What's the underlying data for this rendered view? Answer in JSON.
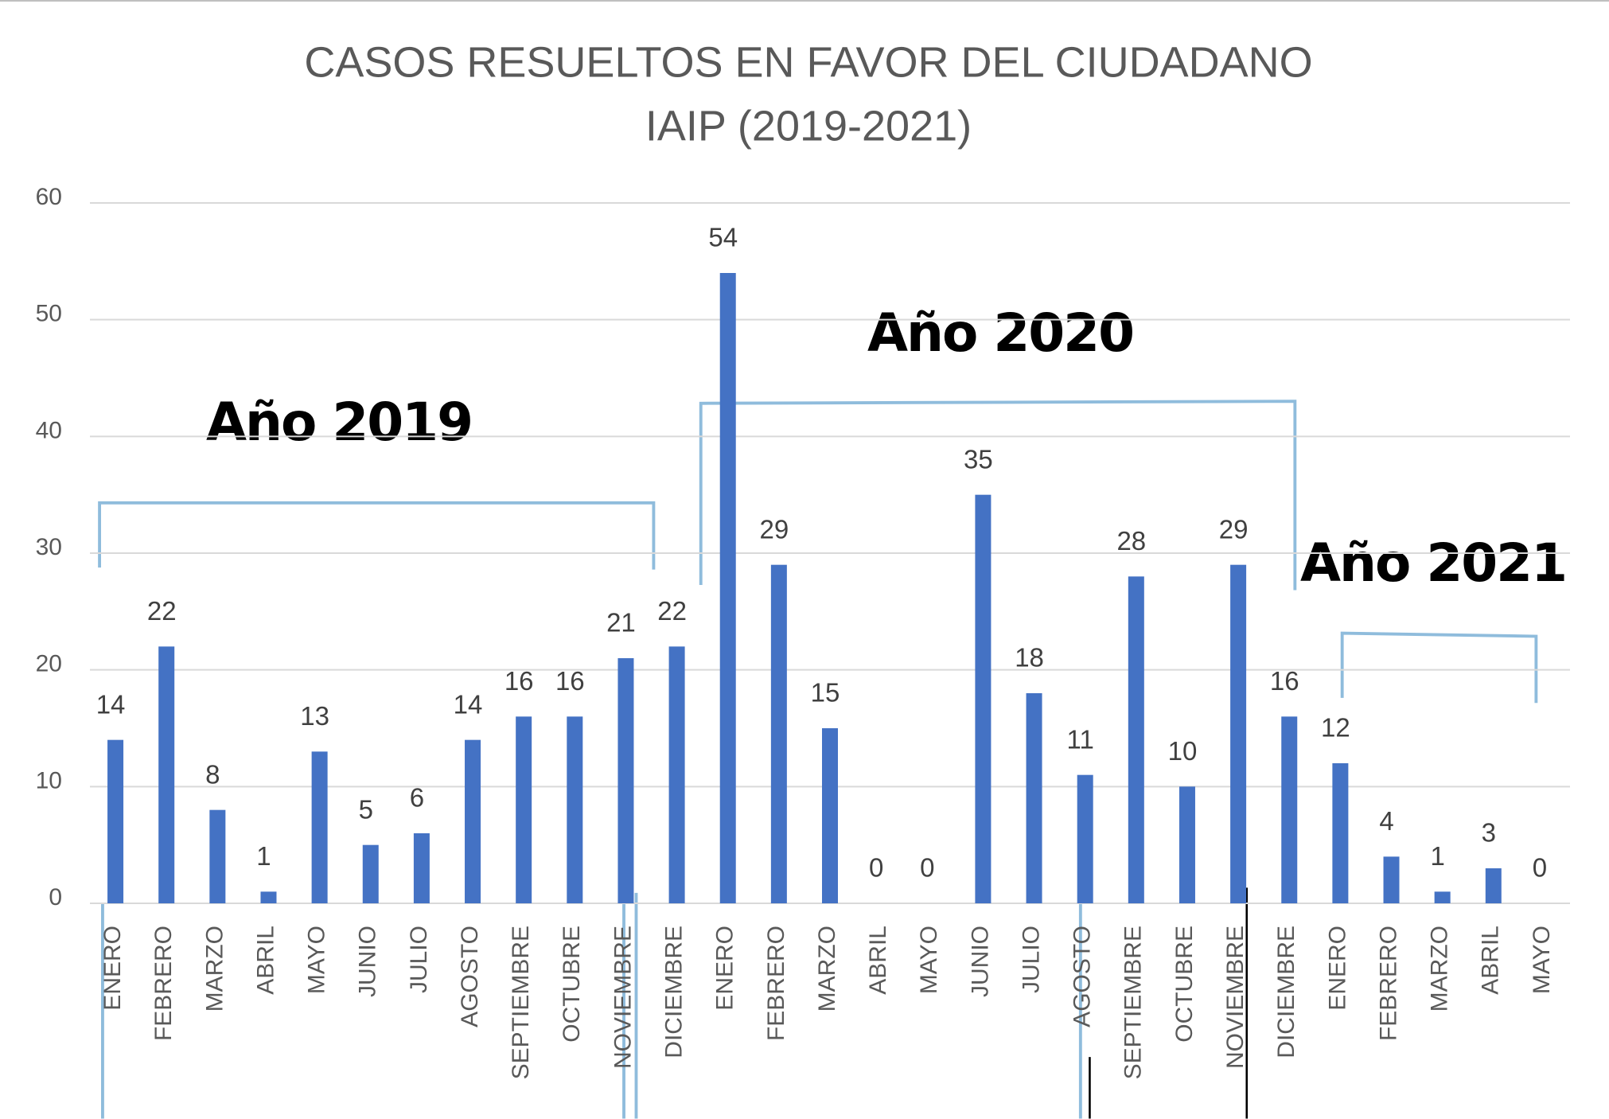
{
  "chart_data": {
    "type": "bar",
    "title": "CASOS RESUELTOS EN FAVOR DEL CIUDADANO",
    "subtitle": "IAIP (2019-2021)",
    "annotations": [
      "Año 2019",
      "Año 2020",
      "Año 2021"
    ],
    "categories": [
      "ENERO",
      "FEBRERO",
      "MARZO",
      "ABRIL",
      "MAYO",
      "JUNIO",
      "JULIO",
      "AGOSTO",
      "SEPTIEMBRE",
      "OCTUBRE",
      "NOVIEMBRE",
      "DICIEMBRE",
      "ENERO",
      "FEBRERO",
      "MARZO",
      "ABRIL",
      "MAYO",
      "JUNIO",
      "JULIO",
      "AGOSTO",
      "SEPTIEMBRE",
      "OCTUBRE",
      "NOVIEMBRE",
      "DICIEMBRE",
      "ENERO",
      "FEBRERO",
      "MARZO",
      "ABRIL",
      "MAYO"
    ],
    "values": [
      14,
      22,
      8,
      1,
      13,
      5,
      6,
      14,
      16,
      16,
      21,
      22,
      54,
      29,
      15,
      0,
      0,
      35,
      18,
      11,
      28,
      10,
      29,
      16,
      12,
      4,
      1,
      3,
      0
    ],
    "color": "#4472c4",
    "ylim": [
      0,
      60
    ],
    "yticks": [
      0,
      10,
      20,
      30,
      40,
      50,
      60
    ],
    "grid": true
  }
}
